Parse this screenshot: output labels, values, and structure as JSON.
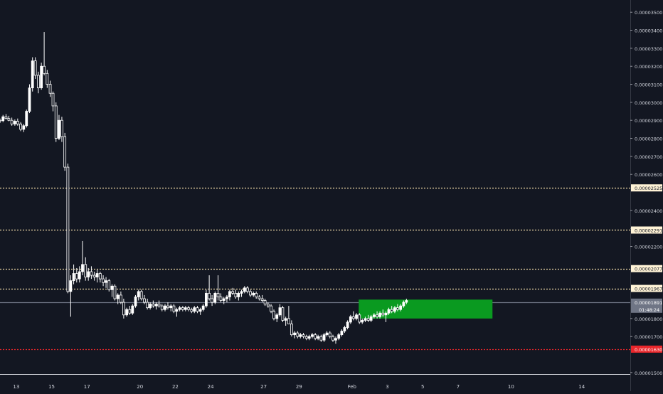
{
  "chart_data": {
    "type": "candlestick",
    "y_axis": {
      "ticks": [
        "0.00003500",
        "0.00003400",
        "0.00003300",
        "0.00003200",
        "0.00003100",
        "0.00003000",
        "0.00002900",
        "0.00002800",
        "0.00002700",
        "0.00002600",
        "0.00002400",
        "0.00002300",
        "0.00002200",
        "0.00001800",
        "0.00001700",
        "0.00001500"
      ],
      "tick_values": [
        3500,
        3400,
        3300,
        3200,
        3100,
        3000,
        2900,
        2800,
        2700,
        2600,
        2400,
        2300,
        2200,
        1800,
        1700,
        1500
      ],
      "unit_scale": 1e-08,
      "range": [
        1460,
        3560
      ]
    },
    "x_axis": {
      "ticks": [
        "13",
        "15",
        "17",
        "20",
        "22",
        "24",
        "27",
        "29",
        "Feb",
        "3",
        "5",
        "7",
        "10",
        "14"
      ],
      "tick_days": [
        13,
        15,
        17,
        20,
        22,
        24,
        27,
        29,
        32,
        34,
        36,
        38,
        41,
        45
      ],
      "day_range": [
        12.08,
        46.5
      ]
    },
    "levels": [
      {
        "value": 2525,
        "label": "0.00002525",
        "style": "dotted",
        "color": "#f0d9a8",
        "tag_bg": "#fff3d6",
        "tag_fg": "#131722"
      },
      {
        "value": 2291,
        "label": "0.00002291",
        "style": "dotted",
        "color": "#f0d9a8",
        "tag_bg": "#fff3d6",
        "tag_fg": "#131722"
      },
      {
        "value": 2077,
        "label": "0.00002077",
        "style": "dotted",
        "color": "#f0d9a8",
        "tag_bg": "#fff3d6",
        "tag_fg": "#131722"
      },
      {
        "value": 1967,
        "label": "0.00001967",
        "style": "dotted",
        "color": "#f0d9a8",
        "tag_bg": "#fff3d6",
        "tag_fg": "#131722"
      },
      {
        "value": 1630,
        "label": "0.00001630",
        "style": "dotted",
        "color": "#e8262b",
        "tag_bg": "#e8262b",
        "tag_fg": "#ffffff"
      },
      {
        "value": 1891,
        "label": "0.00001891",
        "style": "solid",
        "color": "#6f7585",
        "tag_bg": "#6f7585",
        "tag_fg": "#ffffff"
      }
    ],
    "bottom_line": {
      "value": 1490
    },
    "current_price": {
      "value": 1891,
      "label": "0.00001891",
      "countdown": "01:48:24"
    },
    "target_box": {
      "x_start": 32.38,
      "x_end": 39.95,
      "y_top": 1905,
      "y_bottom": 1800,
      "color": "#0a9a20"
    },
    "candle_color": "#ffffff",
    "candles": [
      [
        12.08,
        2900,
        2910,
        2885,
        2898
      ],
      [
        12.25,
        2898,
        2930,
        2890,
        2920
      ],
      [
        12.42,
        2920,
        2935,
        2905,
        2910
      ],
      [
        12.58,
        2910,
        2925,
        2895,
        2900
      ],
      [
        12.75,
        2900,
        2915,
        2870,
        2880
      ],
      [
        12.92,
        2880,
        2905,
        2870,
        2895
      ],
      [
        13.08,
        2895,
        2910,
        2870,
        2880
      ],
      [
        13.25,
        2880,
        2890,
        2840,
        2850
      ],
      [
        13.42,
        2850,
        2880,
        2835,
        2870
      ],
      [
        13.58,
        2870,
        2960,
        2860,
        2950
      ],
      [
        13.75,
        2950,
        3100,
        2940,
        3080
      ],
      [
        13.92,
        3080,
        3250,
        3060,
        3230
      ],
      [
        14.08,
        3230,
        3250,
        3130,
        3150
      ],
      [
        14.25,
        3150,
        3170,
        3050,
        3080
      ],
      [
        14.42,
        3080,
        3220,
        3070,
        3200
      ],
      [
        14.58,
        3200,
        3390,
        3150,
        3160
      ],
      [
        14.75,
        3160,
        3180,
        3080,
        3100
      ],
      [
        14.92,
        3100,
        3120,
        3030,
        3050
      ],
      [
        15.08,
        3050,
        3060,
        2950,
        2980
      ],
      [
        15.25,
        2980,
        3000,
        2780,
        2800
      ],
      [
        15.42,
        2800,
        2930,
        2790,
        2900
      ],
      [
        15.58,
        2900,
        2920,
        2780,
        2810
      ],
      [
        15.75,
        2810,
        2830,
        2620,
        2640
      ],
      [
        15.92,
        2640,
        2660,
        1940,
        1950
      ],
      [
        16.08,
        1950,
        2040,
        1810,
        2010
      ],
      [
        16.25,
        2010,
        2100,
        1990,
        2050
      ],
      [
        16.42,
        2050,
        2080,
        2000,
        2020
      ],
      [
        16.58,
        2020,
        2090,
        2000,
        2060
      ],
      [
        16.75,
        2060,
        2230,
        2040,
        2100
      ],
      [
        16.92,
        2100,
        2140,
        2010,
        2030
      ],
      [
        17.08,
        2030,
        2080,
        2010,
        2060
      ],
      [
        17.25,
        2060,
        2090,
        2020,
        2040
      ],
      [
        17.42,
        2040,
        2060,
        2010,
        2030
      ],
      [
        17.58,
        2030,
        2070,
        2000,
        2050
      ],
      [
        17.75,
        2050,
        2060,
        2000,
        2020
      ],
      [
        17.92,
        2020,
        2040,
        1980,
        2000
      ],
      [
        18.08,
        2000,
        2030,
        1970,
        2010
      ],
      [
        18.25,
        2010,
        2020,
        1950,
        1960
      ],
      [
        18.42,
        1960,
        1990,
        1920,
        1980
      ],
      [
        18.58,
        1980,
        1990,
        1900,
        1910
      ],
      [
        18.75,
        1910,
        1940,
        1880,
        1930
      ],
      [
        18.92,
        1930,
        1950,
        1880,
        1890
      ],
      [
        19.08,
        1890,
        1910,
        1800,
        1820
      ],
      [
        19.25,
        1820,
        1860,
        1810,
        1850
      ],
      [
        19.42,
        1850,
        1870,
        1820,
        1830
      ],
      [
        19.58,
        1830,
        1880,
        1820,
        1870
      ],
      [
        19.75,
        1870,
        1930,
        1860,
        1920
      ],
      [
        19.92,
        1920,
        1960,
        1900,
        1950
      ],
      [
        20.08,
        1950,
        1960,
        1900,
        1910
      ],
      [
        20.25,
        1910,
        1930,
        1880,
        1890
      ],
      [
        20.42,
        1890,
        1910,
        1850,
        1860
      ],
      [
        20.58,
        1860,
        1890,
        1850,
        1880
      ],
      [
        20.75,
        1880,
        1900,
        1860,
        1870
      ],
      [
        20.92,
        1870,
        1890,
        1850,
        1880
      ],
      [
        21.08,
        1880,
        1900,
        1860,
        1870
      ],
      [
        21.25,
        1870,
        1880,
        1840,
        1850
      ],
      [
        21.42,
        1850,
        1880,
        1840,
        1870
      ],
      [
        21.58,
        1870,
        1890,
        1850,
        1860
      ],
      [
        21.75,
        1860,
        1880,
        1840,
        1870
      ],
      [
        21.92,
        1870,
        1880,
        1830,
        1840
      ],
      [
        22.08,
        1840,
        1860,
        1810,
        1850
      ],
      [
        22.25,
        1850,
        1870,
        1840,
        1860
      ],
      [
        22.42,
        1860,
        1870,
        1840,
        1850
      ],
      [
        22.58,
        1850,
        1870,
        1840,
        1860
      ],
      [
        22.75,
        1860,
        1870,
        1840,
        1850
      ],
      [
        22.92,
        1850,
        1860,
        1830,
        1840
      ],
      [
        23.08,
        1840,
        1870,
        1830,
        1860
      ],
      [
        23.25,
        1860,
        1870,
        1830,
        1840
      ],
      [
        23.42,
        1840,
        1860,
        1820,
        1850
      ],
      [
        23.58,
        1850,
        1880,
        1840,
        1870
      ],
      [
        23.75,
        1870,
        1960,
        1860,
        1940
      ],
      [
        23.92,
        1940,
        2040,
        1900,
        1910
      ],
      [
        24.08,
        1910,
        1930,
        1870,
        1890
      ],
      [
        24.25,
        1890,
        1950,
        1880,
        1940
      ],
      [
        24.42,
        1940,
        2040,
        1900,
        1920
      ],
      [
        24.58,
        1920,
        1940,
        1890,
        1900
      ],
      [
        24.75,
        1900,
        1920,
        1880,
        1910
      ],
      [
        24.92,
        1910,
        1930,
        1890,
        1920
      ],
      [
        25.08,
        1920,
        1960,
        1900,
        1950
      ],
      [
        25.25,
        1950,
        1970,
        1930,
        1940
      ],
      [
        25.42,
        1940,
        1960,
        1910,
        1920
      ],
      [
        25.58,
        1920,
        1950,
        1900,
        1940
      ],
      [
        25.75,
        1940,
        1960,
        1920,
        1950
      ],
      [
        25.92,
        1950,
        1980,
        1940,
        1970
      ],
      [
        26.08,
        1970,
        1980,
        1940,
        1950
      ],
      [
        26.25,
        1950,
        1960,
        1920,
        1930
      ],
      [
        26.42,
        1930,
        1950,
        1920,
        1940
      ],
      [
        26.58,
        1940,
        1950,
        1910,
        1920
      ],
      [
        26.75,
        1920,
        1930,
        1900,
        1910
      ],
      [
        26.92,
        1910,
        1930,
        1890,
        1900
      ],
      [
        27.08,
        1900,
        1910,
        1870,
        1880
      ],
      [
        27.25,
        1880,
        1890,
        1860,
        1870
      ],
      [
        27.42,
        1870,
        1880,
        1830,
        1840
      ],
      [
        27.58,
        1840,
        1850,
        1790,
        1800
      ],
      [
        27.75,
        1800,
        1830,
        1780,
        1820
      ],
      [
        27.92,
        1820,
        1880,
        1810,
        1860
      ],
      [
        28.08,
        1860,
        1870,
        1780,
        1790
      ],
      [
        28.25,
        1790,
        1810,
        1760,
        1800
      ],
      [
        28.42,
        1800,
        1870,
        1790,
        1770
      ],
      [
        28.58,
        1770,
        1790,
        1700,
        1710
      ],
      [
        28.75,
        1710,
        1730,
        1690,
        1720
      ],
      [
        28.92,
        1720,
        1730,
        1690,
        1700
      ],
      [
        29.08,
        1700,
        1720,
        1690,
        1710
      ],
      [
        29.25,
        1710,
        1720,
        1690,
        1700
      ],
      [
        29.42,
        1700,
        1710,
        1680,
        1690
      ],
      [
        29.58,
        1690,
        1710,
        1680,
        1700
      ],
      [
        29.75,
        1700,
        1720,
        1690,
        1710
      ],
      [
        29.92,
        1710,
        1720,
        1680,
        1690
      ],
      [
        30.08,
        1690,
        1710,
        1680,
        1700
      ],
      [
        30.25,
        1700,
        1710,
        1670,
        1680
      ],
      [
        30.42,
        1680,
        1720,
        1670,
        1710
      ],
      [
        30.58,
        1710,
        1730,
        1700,
        1720
      ],
      [
        30.75,
        1720,
        1730,
        1690,
        1700
      ],
      [
        30.92,
        1700,
        1710,
        1670,
        1680
      ],
      [
        31.08,
        1680,
        1700,
        1660,
        1690
      ],
      [
        31.25,
        1690,
        1720,
        1680,
        1710
      ],
      [
        31.42,
        1710,
        1740,
        1700,
        1730
      ],
      [
        31.58,
        1730,
        1760,
        1720,
        1750
      ],
      [
        31.75,
        1750,
        1790,
        1740,
        1780
      ],
      [
        31.92,
        1780,
        1820,
        1770,
        1810
      ],
      [
        32.08,
        1810,
        1840,
        1790,
        1800
      ],
      [
        32.25,
        1800,
        1830,
        1790,
        1820
      ],
      [
        32.42,
        1820,
        1830,
        1770,
        1780
      ],
      [
        32.58,
        1780,
        1800,
        1770,
        1790
      ],
      [
        32.75,
        1790,
        1810,
        1780,
        1800
      ],
      [
        32.92,
        1800,
        1820,
        1780,
        1790
      ],
      [
        33.08,
        1790,
        1820,
        1780,
        1810
      ],
      [
        33.25,
        1810,
        1830,
        1800,
        1820
      ],
      [
        33.42,
        1820,
        1840,
        1800,
        1810
      ],
      [
        33.58,
        1810,
        1840,
        1800,
        1830
      ],
      [
        33.75,
        1830,
        1850,
        1810,
        1820
      ],
      [
        33.92,
        1820,
        1840,
        1780,
        1830
      ],
      [
        34.08,
        1830,
        1860,
        1820,
        1850
      ],
      [
        34.25,
        1850,
        1870,
        1830,
        1840
      ],
      [
        34.42,
        1840,
        1870,
        1830,
        1860
      ],
      [
        34.58,
        1860,
        1880,
        1840,
        1850
      ],
      [
        34.75,
        1850,
        1880,
        1840,
        1870
      ],
      [
        34.92,
        1870,
        1900,
        1860,
        1890
      ],
      [
        35.08,
        1890,
        1910,
        1880,
        1900
      ]
    ]
  }
}
